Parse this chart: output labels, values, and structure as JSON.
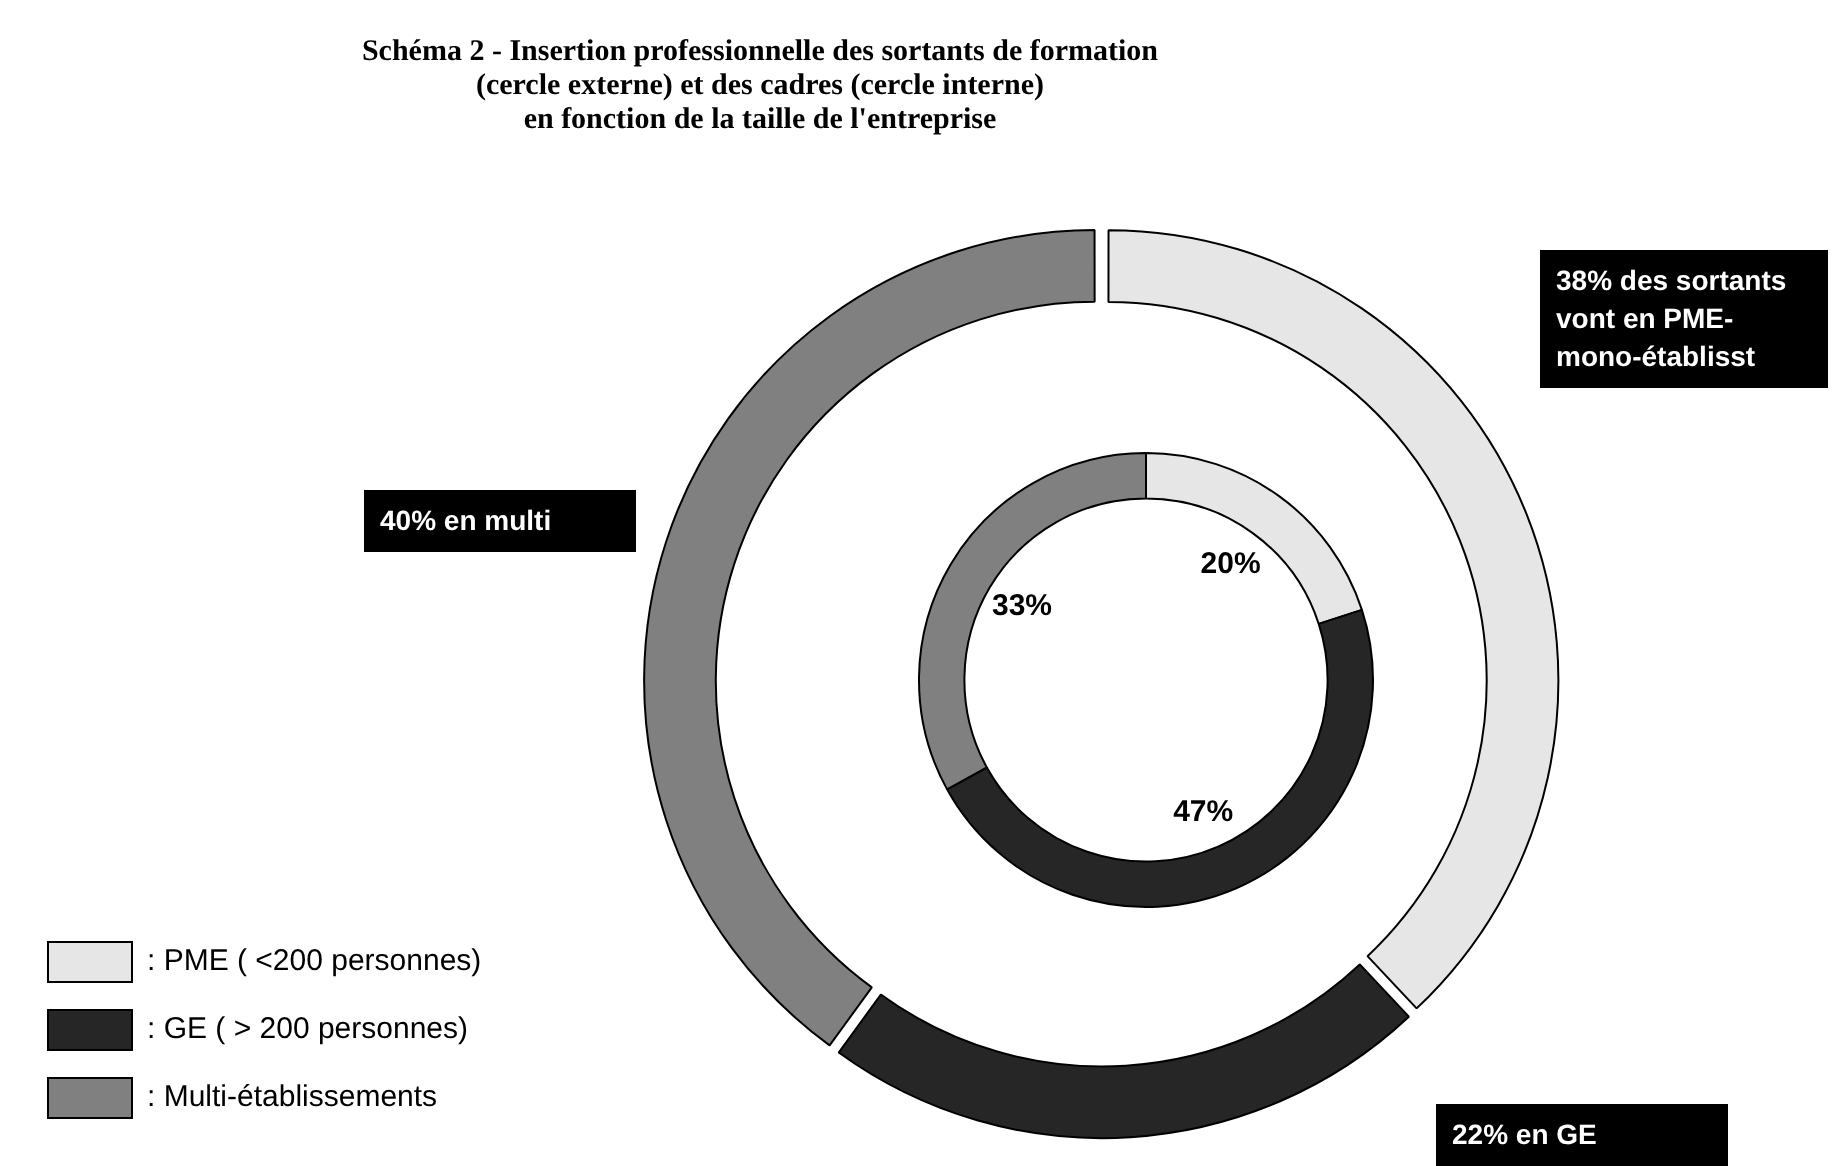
{
  "chart_data": {
    "type": "donut",
    "title": "Schéma 2 - Insertion professionnelle des sortants de formation\n(cercle externe) et des cadres (cercle interne)\nen fonction de la taille de l'entreprise",
    "categories": [
      ": PME ( <200 personnes)",
      ": GE ( > 200 personnes)",
      ": Multi-établissements"
    ],
    "series": [
      {
        "values": [
          38,
          22,
          40
        ],
        "colors": [
          "#e6e6e6",
          "#262626",
          "#808080"
        ],
        "value_labels": [
          "38% des sortants vont en PME-mono-établisst",
          "22% en GE",
          "40% en multi"
        ]
      },
      {
        "values": [
          20,
          47,
          33
        ],
        "colors": [
          "#e6e6e6",
          "#262626",
          "#808080"
        ],
        "value_labels": [
          "20%",
          "47%",
          "33%"
        ]
      }
    ],
    "legend": "bottom left"
  }
}
